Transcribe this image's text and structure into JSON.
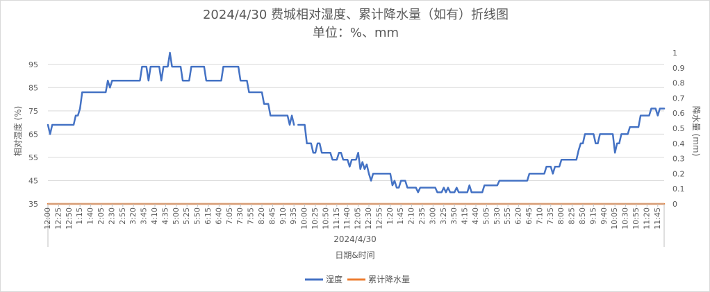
{
  "chart_data": {
    "type": "line",
    "title": "2024/4/30 费城相对湿度、累计降水量（如有）折线图",
    "subtitle": "单位：%、mm",
    "xlabel": "日期&时间",
    "x_group_label": "2024/4/30",
    "ylabel_left": "相对湿度 (%)",
    "ylabel_right": "降水量 (mm)",
    "ylim_left": [
      35,
      100
    ],
    "yticks_left": [
      35,
      45,
      55,
      65,
      75,
      85,
      95
    ],
    "ylim_right": [
      0,
      1
    ],
    "yticks_right": [
      0,
      0.1,
      0.2,
      0.3,
      0.4,
      0.5,
      0.6,
      0.7,
      0.8,
      0.9,
      1
    ],
    "x_tick_labels": [
      "12:00",
      "12:25",
      "12:50",
      "1:15",
      "1:40",
      "2:05",
      "2:30",
      "2:55",
      "3:20",
      "3:45",
      "4:10",
      "4:35",
      "5:00",
      "5:25",
      "5:50",
      "6:15",
      "6:40",
      "7:05",
      "7:30",
      "7:55",
      "8:20",
      "8:45",
      "9:10",
      "9:35",
      "10:00",
      "10:25",
      "10:50",
      "11:15",
      "11:40",
      "12:05",
      "12:30",
      "12:55",
      "1:20",
      "1:45",
      "2:10",
      "2:35",
      "3:00",
      "3:25",
      "3:50",
      "4:15",
      "4:40",
      "5:05",
      "5:30",
      "5:55",
      "6:20",
      "6:45",
      "7:10",
      "7:35",
      "8:00",
      "8:25",
      "8:50",
      "9:15",
      "9:40",
      "10:05",
      "10:30",
      "10:55",
      "11:20",
      "11:45"
    ],
    "x_count": 288,
    "grid": true,
    "legend_position": "bottom",
    "series": [
      {
        "name": "湿度",
        "color": "#4472c4",
        "axis": "left",
        "points": [
          [
            0,
            69
          ],
          [
            1,
            65
          ],
          [
            2,
            69
          ],
          [
            3,
            69
          ],
          [
            12,
            69
          ],
          [
            13,
            73
          ],
          [
            14,
            73
          ],
          [
            15,
            76
          ],
          [
            16,
            83
          ],
          [
            27,
            83
          ],
          [
            28,
            88
          ],
          [
            29,
            85
          ],
          [
            30,
            88
          ],
          [
            43,
            88
          ],
          [
            44,
            94
          ],
          [
            46,
            94
          ],
          [
            47,
            88
          ],
          [
            48,
            94
          ],
          [
            52,
            94
          ],
          [
            53,
            88
          ],
          [
            54,
            94
          ],
          [
            56,
            94
          ],
          [
            57,
            100
          ],
          [
            58,
            94
          ],
          [
            62,
            94
          ],
          [
            63,
            88
          ],
          [
            66,
            88
          ],
          [
            67,
            94
          ],
          [
            73,
            94
          ],
          [
            74,
            88
          ],
          [
            81,
            88
          ],
          [
            82,
            94
          ],
          [
            89,
            94
          ],
          [
            90,
            88
          ],
          [
            93,
            88
          ],
          [
            94,
            83
          ],
          [
            100,
            83
          ],
          [
            101,
            78
          ],
          [
            103,
            78
          ],
          [
            104,
            73
          ],
          [
            112,
            73
          ],
          [
            113,
            69
          ],
          [
            114,
            73
          ],
          [
            115,
            69
          ],
          [
            116,
            null
          ],
          [
            117,
            69
          ],
          [
            120,
            69
          ],
          [
            121,
            61
          ],
          [
            123,
            61
          ],
          [
            124,
            57
          ],
          [
            125,
            57
          ],
          [
            126,
            61
          ],
          [
            127,
            61
          ],
          [
            128,
            57
          ],
          [
            132,
            57
          ],
          [
            133,
            54
          ],
          [
            135,
            54
          ],
          [
            136,
            57
          ],
          [
            137,
            57
          ],
          [
            138,
            54
          ],
          [
            140,
            54
          ],
          [
            141,
            51
          ],
          [
            142,
            54
          ],
          [
            144,
            54
          ],
          [
            145,
            57
          ],
          [
            146,
            50
          ],
          [
            147,
            53
          ],
          [
            148,
            50
          ],
          [
            149,
            52
          ],
          [
            150,
            48
          ],
          [
            151,
            45
          ],
          [
            152,
            48
          ],
          [
            160,
            48
          ],
          [
            161,
            43
          ],
          [
            162,
            45
          ],
          [
            163,
            42
          ],
          [
            164,
            42
          ],
          [
            165,
            45
          ],
          [
            167,
            45
          ],
          [
            168,
            42
          ],
          [
            172,
            42
          ],
          [
            173,
            40
          ],
          [
            174,
            42
          ],
          [
            181,
            42
          ],
          [
            182,
            40
          ],
          [
            184,
            40
          ],
          [
            185,
            42
          ],
          [
            186,
            40
          ],
          [
            187,
            42
          ],
          [
            188,
            40
          ],
          [
            190,
            40
          ],
          [
            191,
            42
          ],
          [
            192,
            40
          ],
          [
            196,
            40
          ],
          [
            197,
            43
          ],
          [
            198,
            40
          ],
          [
            203,
            40
          ],
          [
            204,
            43
          ],
          [
            210,
            43
          ],
          [
            211,
            45
          ],
          [
            224,
            45
          ],
          [
            225,
            48
          ],
          [
            232,
            48
          ],
          [
            233,
            51
          ],
          [
            235,
            51
          ],
          [
            236,
            48
          ],
          [
            237,
            51
          ],
          [
            239,
            51
          ],
          [
            240,
            54
          ],
          [
            247,
            54
          ],
          [
            248,
            58
          ],
          [
            249,
            61
          ],
          [
            250,
            61
          ],
          [
            251,
            65
          ],
          [
            255,
            65
          ],
          [
            256,
            61
          ],
          [
            257,
            61
          ],
          [
            258,
            65
          ],
          [
            264,
            65
          ],
          [
            265,
            57
          ],
          [
            266,
            61
          ],
          [
            267,
            61
          ],
          [
            268,
            65
          ],
          [
            271,
            65
          ],
          [
            272,
            68
          ],
          [
            276,
            68
          ],
          [
            277,
            73
          ],
          [
            281,
            73
          ],
          [
            282,
            76
          ],
          [
            284,
            76
          ],
          [
            285,
            73
          ],
          [
            286,
            76
          ],
          [
            288,
            76
          ]
        ]
      },
      {
        "name": "累计降水量",
        "color": "#ed7d31",
        "axis": "right",
        "points": [
          [
            0,
            0
          ],
          [
            288,
            0
          ]
        ]
      }
    ]
  }
}
